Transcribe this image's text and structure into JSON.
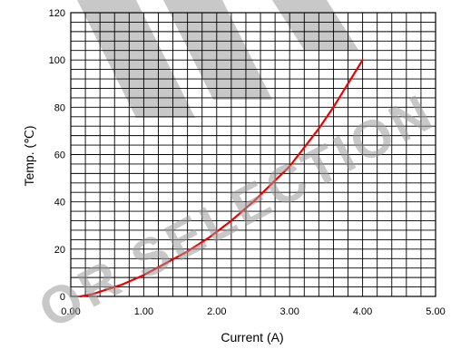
{
  "watermark": {
    "text": "OR SELECTION"
  },
  "chart_data": {
    "type": "line",
    "xlabel": "Current (A)",
    "ylabel": "Temp. (℃)",
    "xlim": [
      0,
      5
    ],
    "ylim": [
      0,
      120
    ],
    "x_ticks": [
      "0.00",
      "1.00",
      "2.00",
      "3.00",
      "4.00",
      "5.00"
    ],
    "y_ticks": [
      "0",
      "20",
      "40",
      "60",
      "80",
      "100",
      "120"
    ],
    "grid": true,
    "minor_grid_x_step": 0.2,
    "minor_grid_y_step": 4,
    "series": [
      {
        "color": "#ee0000",
        "x": [
          0.13,
          0.3,
          0.5,
          0.7,
          1.0,
          1.3,
          1.6,
          1.9,
          2.2,
          2.5,
          2.8,
          3.0,
          3.2,
          3.4,
          3.6,
          3.8,
          4.0
        ],
        "y": [
          0,
          1,
          3,
          5,
          9,
          14,
          19,
          25,
          32,
          40,
          49,
          55,
          63,
          71,
          80,
          90,
          100
        ]
      }
    ]
  },
  "colors": {
    "grid": "#000000",
    "line": "#ee0000",
    "watermark": "#9a9a9a"
  }
}
